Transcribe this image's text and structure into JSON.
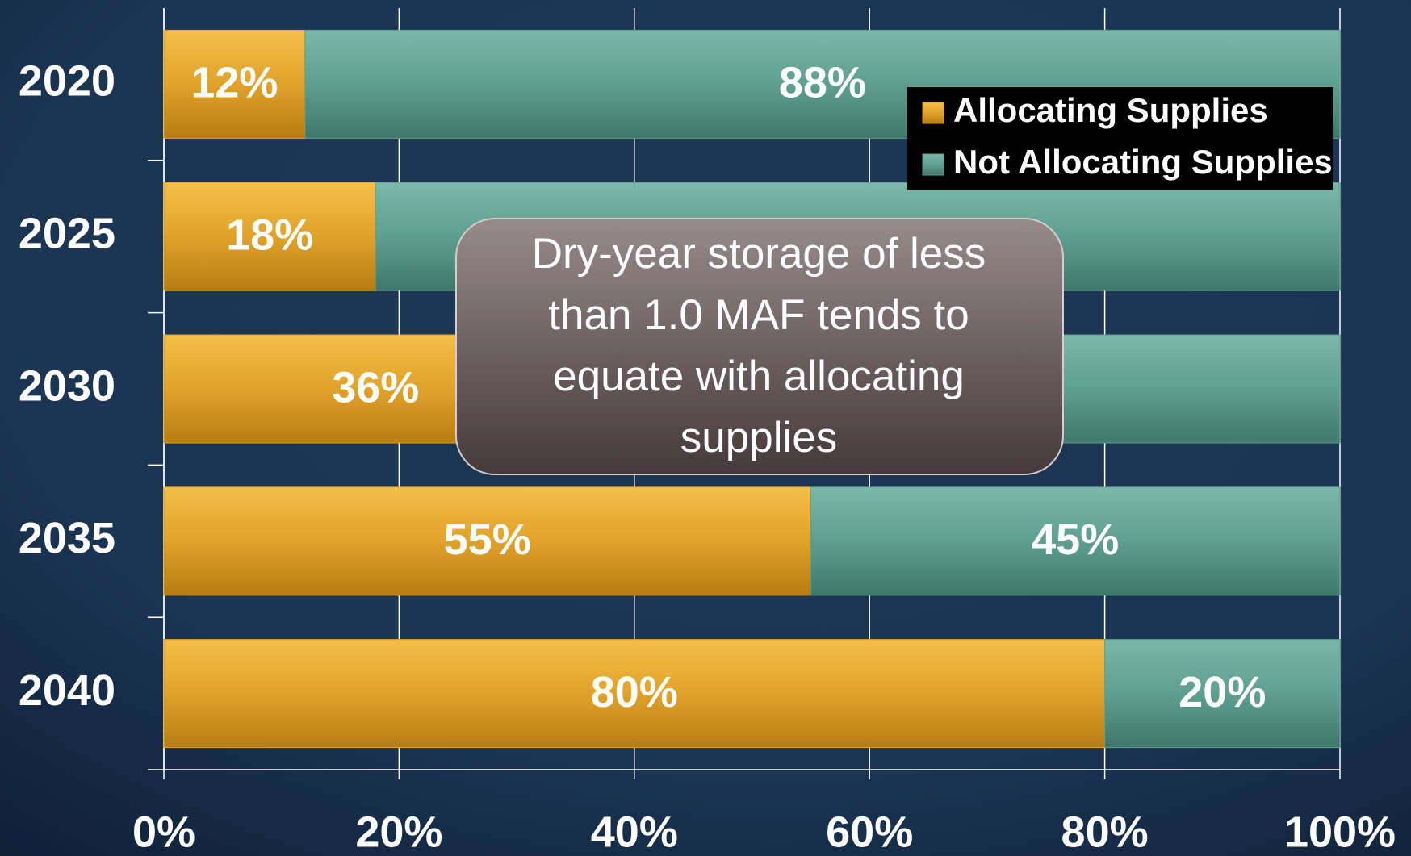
{
  "chart_data": {
    "type": "stacked-bar-horizontal",
    "categories": [
      "2020",
      "2025",
      "2030",
      "2035",
      "2040"
    ],
    "series": [
      {
        "name": "Allocating Supplies",
        "color": "#e0a22a",
        "values": [
          12,
          18,
          36,
          55,
          80
        ],
        "value_labels": [
          "12%",
          "18%",
          "36%",
          "55%",
          "80%"
        ]
      },
      {
        "name": "Not Allocating Supplies",
        "color": "#5f9f90",
        "values": [
          88,
          82,
          64,
          45,
          20
        ],
        "value_labels": [
          "88%",
          null,
          null,
          "45%",
          "20%"
        ]
      }
    ],
    "xlim": [
      0,
      100
    ],
    "xticks": [
      {
        "value": 0,
        "label": "0%"
      },
      {
        "value": 20,
        "label": "20%"
      },
      {
        "value": 40,
        "label": "40%"
      },
      {
        "value": 60,
        "label": "60%"
      },
      {
        "value": 80,
        "label": "80%"
      },
      {
        "value": 100,
        "label": "100%"
      }
    ],
    "grid": true,
    "legend": "top-right",
    "annotation": [
      "Dry-year storage of less",
      "than  1.0 MAF tends to",
      "equate with allocating",
      "supplies"
    ]
  }
}
